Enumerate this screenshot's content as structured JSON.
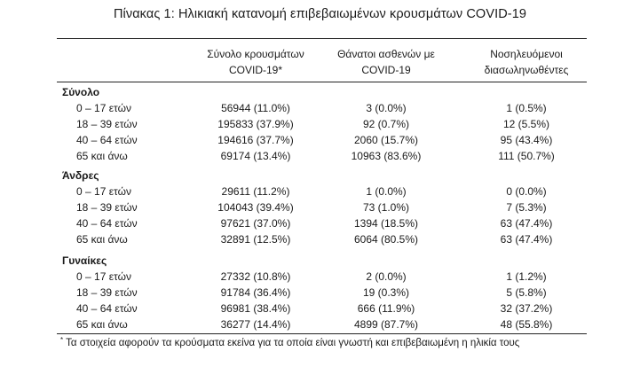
{
  "title": "Πίνακας 1: Ηλικιακή κατανομή επιβεβαιωμένων κρουσμάτων COVID-19",
  "columns": [
    {
      "line1": "Σύνολο κρουσμάτων",
      "line2": "COVID-19*"
    },
    {
      "line1": "Θάνατοι ασθενών με",
      "line2": "COVID-19"
    },
    {
      "line1": "Νοσηλευόμενοι",
      "line2": "διασωληνωθέντες"
    }
  ],
  "sections": [
    {
      "title": "Σύνολο",
      "rows": [
        {
          "label": "0 – 17 ετών",
          "cases": "56944 (11.0%)",
          "deaths": "3 (0.0%)",
          "intubated": "1 (0.5%)"
        },
        {
          "label": "18 – 39 ετών",
          "cases": "195833 (37.9%)",
          "deaths": "92 (0.7%)",
          "intubated": "12 (5.5%)"
        },
        {
          "label": "40 – 64 ετών",
          "cases": "194616 (37.7%)",
          "deaths": "2060 (15.7%)",
          "intubated": "95 (43.4%)"
        },
        {
          "label": "65 και άνω",
          "cases": "69174 (13.4%)",
          "deaths": "10963 (83.6%)",
          "intubated": "111 (50.7%)"
        }
      ]
    },
    {
      "title": "Άνδρες",
      "rows": [
        {
          "label": "0 – 17 ετών",
          "cases": "29611 (11.2%)",
          "deaths": "1 (0.0%)",
          "intubated": "0 (0.0%)"
        },
        {
          "label": "18 – 39 ετών",
          "cases": "104043 (39.4%)",
          "deaths": "73 (1.0%)",
          "intubated": "7 (5.3%)"
        },
        {
          "label": "40 – 64 ετών",
          "cases": "97621 (37.0%)",
          "deaths": "1394 (18.5%)",
          "intubated": "63 (47.4%)"
        },
        {
          "label": "65 και άνω",
          "cases": "32891 (12.5%)",
          "deaths": "6064 (80.5%)",
          "intubated": "63 (47.4%)"
        }
      ]
    },
    {
      "title": "Γυναίκες",
      "rows": [
        {
          "label": "0 – 17 ετών",
          "cases": "27332 (10.8%)",
          "deaths": "2 (0.0%)",
          "intubated": "1 (1.2%)"
        },
        {
          "label": "18 – 39 ετών",
          "cases": "91784 (36.4%)",
          "deaths": "19 (0.3%)",
          "intubated": "5 (5.8%)"
        },
        {
          "label": "40 – 64 ετών",
          "cases": "96981 (38.4%)",
          "deaths": "666 (11.9%)",
          "intubated": "32 (37.2%)"
        },
        {
          "label": "65 και άνω",
          "cases": "36277 (14.4%)",
          "deaths": "4899 (87.7%)",
          "intubated": "48 (55.8%)"
        }
      ]
    }
  ],
  "footnote": {
    "marker": "*",
    "text": " Τα στοιχεία αφορούν τα κρούσματα εκείνα για τα οποία είναι γνωστή και επιβεβαιωμένη η ηλικία τους"
  }
}
